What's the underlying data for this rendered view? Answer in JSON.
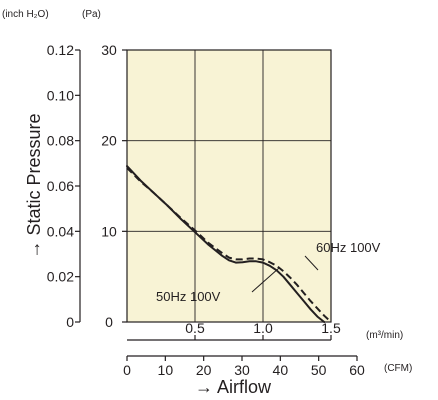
{
  "chart_data": {
    "type": "line",
    "units": {
      "inch": "(inch H₂O)",
      "pa": "(Pa)",
      "m3": "(m³/min)",
      "cfm": "(CFM)"
    },
    "xlabel": "→ Airflow",
    "ylabel": "→ Static Pressure",
    "xlim": [
      0,
      1.5
    ],
    "ylim_pa": [
      0,
      30
    ],
    "ylim_inch": [
      0,
      0.12
    ],
    "ylim_cfm": [
      0,
      60
    ],
    "x_ticks_m3": [
      "0.5",
      "1.0",
      "1.5"
    ],
    "x_ticks_m3_values": [
      0.5,
      1.0,
      1.5
    ],
    "y_ticks_pa": [
      "0",
      "10",
      "20",
      "30"
    ],
    "y_ticks_pa_values": [
      0,
      10,
      20,
      30
    ],
    "y_ticks_inch": [
      "0",
      "0.02",
      "0.04",
      "0.06",
      "0.08",
      "0.10",
      "0.12"
    ],
    "y_ticks_inch_values": [
      0,
      0.02,
      0.04,
      0.06,
      0.08,
      0.1,
      0.12
    ],
    "x_ticks_cfm": [
      "0",
      "10",
      "20",
      "30",
      "40",
      "50",
      "60"
    ],
    "x_ticks_cfm_values": [
      0,
      10,
      20,
      30,
      40,
      50,
      60
    ],
    "grid": true,
    "series": [
      {
        "name": "50Hz 100V",
        "style": "solid",
        "x": [
          0,
          0.1,
          0.2,
          0.3,
          0.4,
          0.5,
          0.6,
          0.7,
          0.75,
          0.8,
          0.85,
          0.9,
          0.95,
          1.0,
          1.05,
          1.1,
          1.15,
          1.2,
          1.25,
          1.3,
          1.35,
          1.4,
          1.45
        ],
        "y": [
          17.2,
          15.6,
          14.2,
          12.8,
          11.3,
          9.9,
          8.5,
          7.3,
          6.8,
          6.55,
          6.6,
          6.7,
          6.7,
          6.55,
          6.2,
          5.7,
          5.0,
          4.1,
          3.2,
          2.3,
          1.4,
          0.6,
          0
        ]
      },
      {
        "name": "60Hz 100V",
        "style": "dashed",
        "x": [
          0,
          0.1,
          0.2,
          0.3,
          0.4,
          0.5,
          0.6,
          0.7,
          0.75,
          0.8,
          0.85,
          0.9,
          0.95,
          1.0,
          1.05,
          1.1,
          1.15,
          1.2,
          1.25,
          1.3,
          1.35,
          1.4,
          1.45,
          1.5
        ],
        "y": [
          17.0,
          15.5,
          14.2,
          12.8,
          11.4,
          10.1,
          8.7,
          7.6,
          7.1,
          6.9,
          6.9,
          7.0,
          7.0,
          6.9,
          6.6,
          6.2,
          5.6,
          4.9,
          4.1,
          3.2,
          2.3,
          1.5,
          0.7,
          0
        ]
      }
    ],
    "annotations": [
      "50Hz 100V",
      "60Hz 100V"
    ]
  }
}
